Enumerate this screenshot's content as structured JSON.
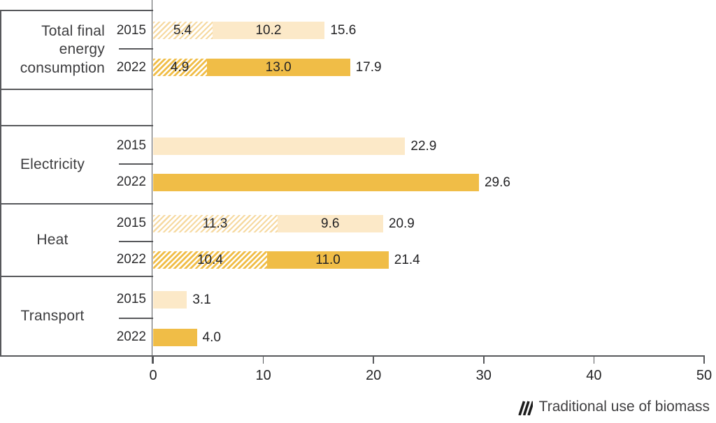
{
  "chart_data": {
    "type": "bar",
    "orientation": "horizontal",
    "title": "",
    "xlabel": "",
    "ylabel": "",
    "x_axis": {
      "min": 0,
      "max": 50,
      "ticks": [
        "0",
        "10",
        "20",
        "30",
        "40",
        "50"
      ],
      "grid": false
    },
    "legend": {
      "label": "Traditional use of biomass",
      "style": "hatched",
      "position": "bottom-right"
    },
    "colors": {
      "bar_2015": "#fce9c8",
      "bar_2022": "#f0bd47",
      "hatch_2015_stripe": "#f6d9a0",
      "hatch_2022_stripe": "#f0bd47",
      "axis_line": "#57585b",
      "value_text": "#232325"
    },
    "groups": [
      {
        "category": "Total final energy consumption",
        "category_lines": [
          "Total final",
          "energy",
          "consumption"
        ],
        "rows": [
          {
            "year": "2015",
            "segments": [
              {
                "value": 5.4,
                "label": "5.4",
                "hatched": true
              },
              {
                "value": 10.2,
                "label": "10.2",
                "hatched": false
              }
            ],
            "total": 15.6,
            "total_label": "15.6"
          },
          {
            "year": "2022",
            "segments": [
              {
                "value": 4.9,
                "label": "4.9",
                "hatched": true
              },
              {
                "value": 13.0,
                "label": "13.0",
                "hatched": false
              }
            ],
            "total": 17.9,
            "total_label": "17.9"
          }
        ]
      },
      {
        "category": "Electricity",
        "category_lines": [
          "Electricity"
        ],
        "rows": [
          {
            "year": "2015",
            "segments": [
              {
                "value": 22.9,
                "label": "",
                "hatched": false
              }
            ],
            "total": 22.9,
            "total_label": "22.9"
          },
          {
            "year": "2022",
            "segments": [
              {
                "value": 29.6,
                "label": "",
                "hatched": false
              }
            ],
            "total": 29.6,
            "total_label": "29.6"
          }
        ]
      },
      {
        "category": "Heat",
        "category_lines": [
          "Heat"
        ],
        "rows": [
          {
            "year": "2015",
            "segments": [
              {
                "value": 11.3,
                "label": "11.3",
                "hatched": true
              },
              {
                "value": 9.6,
                "label": "9.6",
                "hatched": false
              }
            ],
            "total": 20.9,
            "total_label": "20.9"
          },
          {
            "year": "2022",
            "segments": [
              {
                "value": 10.4,
                "label": "10.4",
                "hatched": true
              },
              {
                "value": 11.0,
                "label": "11.0",
                "hatched": false
              }
            ],
            "total": 21.4,
            "total_label": "21.4"
          }
        ]
      },
      {
        "category": "Transport",
        "category_lines": [
          "Transport"
        ],
        "rows": [
          {
            "year": "2015",
            "segments": [
              {
                "value": 3.1,
                "label": "",
                "hatched": false
              }
            ],
            "total": 3.1,
            "total_label": "3.1"
          },
          {
            "year": "2022",
            "segments": [
              {
                "value": 4.0,
                "label": "",
                "hatched": false
              }
            ],
            "total": 4.0,
            "total_label": "4.0"
          }
        ]
      }
    ]
  }
}
